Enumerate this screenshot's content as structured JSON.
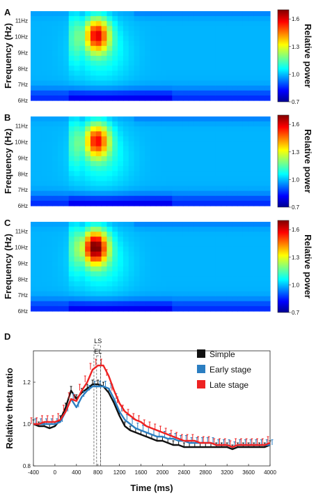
{
  "colors": {
    "simple": "#111111",
    "early": "#2b7ec1",
    "late": "#ee2222",
    "roi_box": "#555555"
  },
  "chart_data": [
    {
      "panel": "A",
      "type": "heatmap",
      "ylabel": "Frequency (Hz)",
      "y_ticks": [
        "11Hz",
        "10Hz",
        "9Hz",
        "8Hz",
        "7Hz",
        "6Hz"
      ],
      "colorbar": {
        "label": "Relative power",
        "ticks": [
          "1.6",
          "1.3",
          "1.0",
          "0.7"
        ],
        "range": [
          0.7,
          1.7
        ]
      },
      "blob": {
        "center_ms": 820,
        "center_hz": 10.1,
        "peak": 1.55
      }
    },
    {
      "panel": "B",
      "type": "heatmap",
      "ylabel": "Frequency (Hz)",
      "y_ticks": [
        "11Hz",
        "10Hz",
        "9Hz",
        "8Hz",
        "7Hz",
        "6Hz"
      ],
      "colorbar": {
        "label": "Relative power",
        "ticks": [
          "1.6",
          "1.3",
          "1.0",
          "0.7"
        ],
        "range": [
          0.7,
          1.7
        ]
      },
      "blob": {
        "center_ms": 820,
        "center_hz": 10.1,
        "peak": 1.52
      }
    },
    {
      "panel": "C",
      "type": "heatmap",
      "ylabel": "Frequency (Hz)",
      "y_ticks": [
        "11Hz",
        "10Hz",
        "9Hz",
        "8Hz",
        "7Hz",
        "6Hz"
      ],
      "colorbar": {
        "label": "Relative power",
        "ticks": [
          "1.6",
          "1.3",
          "1.0",
          "0.7"
        ],
        "range": [
          0.7,
          1.7
        ]
      },
      "blob": {
        "center_ms": 790,
        "center_hz": 10.0,
        "peak": 1.68
      }
    },
    {
      "panel": "D",
      "type": "line",
      "xlabel": "Time (ms)",
      "ylabel": "Relative theta ratio",
      "xlim": [
        -400,
        4000
      ],
      "ylim": [
        0.8,
        1.35
      ],
      "x_ticks": [
        "-400",
        "0",
        "400",
        "800",
        "1200",
        "1600",
        "2000",
        "2400",
        "2800",
        "3200",
        "3600",
        "4000"
      ],
      "y_ticks": [
        "0.8",
        "1.0",
        "1.2"
      ],
      "annotation_top": "LS",
      "annotation_bottom": "EL",
      "x": [
        -400,
        -300,
        -200,
        -100,
        0,
        100,
        200,
        300,
        400,
        500,
        600,
        700,
        800,
        900,
        1000,
        1100,
        1200,
        1300,
        1400,
        1500,
        1600,
        1700,
        1800,
        1900,
        2000,
        2100,
        2200,
        2300,
        2400,
        2500,
        2600,
        2700,
        2800,
        2900,
        3000,
        3100,
        3200,
        3300,
        3400,
        3500,
        3600,
        3700,
        3800,
        3900,
        4000
      ],
      "series": [
        {
          "name": "Simple",
          "values": [
            1.0,
            0.99,
            0.99,
            0.98,
            0.99,
            1.02,
            1.08,
            1.16,
            1.12,
            1.15,
            1.17,
            1.19,
            1.19,
            1.18,
            1.15,
            1.1,
            1.04,
            0.99,
            0.97,
            0.96,
            0.95,
            0.94,
            0.93,
            0.92,
            0.92,
            0.91,
            0.9,
            0.9,
            0.89,
            0.89,
            0.89,
            0.89,
            0.89,
            0.89,
            0.89,
            0.89,
            0.89,
            0.88,
            0.89,
            0.89,
            0.89,
            0.89,
            0.89,
            0.89,
            0.9
          ],
          "err": 0.02
        },
        {
          "name": "Early stage",
          "values": [
            1.0,
            1.0,
            1.0,
            1.0,
            1.0,
            1.01,
            1.06,
            1.12,
            1.08,
            1.13,
            1.16,
            1.18,
            1.18,
            1.18,
            1.17,
            1.12,
            1.06,
            1.02,
            1.0,
            0.98,
            0.97,
            0.96,
            0.95,
            0.94,
            0.94,
            0.93,
            0.93,
            0.92,
            0.92,
            0.91,
            0.91,
            0.91,
            0.91,
            0.91,
            0.9,
            0.9,
            0.9,
            0.89,
            0.9,
            0.9,
            0.9,
            0.9,
            0.9,
            0.9,
            0.9
          ],
          "err": 0.025
        },
        {
          "name": "Late stage",
          "values": [
            1.0,
            1.0,
            1.01,
            1.01,
            1.01,
            1.02,
            1.06,
            1.12,
            1.11,
            1.16,
            1.2,
            1.26,
            1.28,
            1.28,
            1.23,
            1.16,
            1.1,
            1.06,
            1.04,
            1.02,
            1.01,
            0.99,
            0.98,
            0.97,
            0.96,
            0.95,
            0.94,
            0.93,
            0.92,
            0.92,
            0.92,
            0.91,
            0.91,
            0.91,
            0.9,
            0.9,
            0.9,
            0.89,
            0.9,
            0.9,
            0.9,
            0.9,
            0.9,
            0.9,
            0.91
          ],
          "err": 0.03
        }
      ],
      "roi_windows": [
        {
          "start_ms": 725,
          "end_ms": 850
        },
        {
          "start_ms": 775,
          "end_ms": 850
        }
      ]
    }
  ]
}
